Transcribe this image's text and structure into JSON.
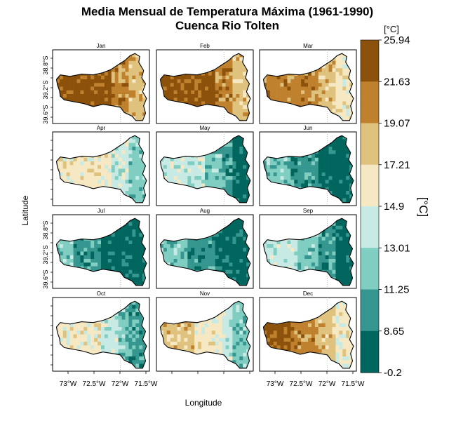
{
  "figure": {
    "title_line1": "Media Mensual de Temperatura Máxima (1961-1990)",
    "title_line2": "Cuenca Rio Tolten",
    "xlabel": "Longitude",
    "ylabel": "Latitude",
    "colorbar_unit_top": "[°C]",
    "colorbar_unit_side": "[°C]"
  },
  "chart_data": {
    "type": "heatmap",
    "title": "Media Mensual de Temperatura Máxima (1961-1990)",
    "subtitle": "Cuenca Rio Tolten",
    "xlabel": "Longitude",
    "ylabel": "Latitude",
    "layout": "small multiples, 4 rows x 3 columns",
    "panels": [
      "Jan",
      "Feb",
      "Mar",
      "Apr",
      "May",
      "Jun",
      "Jul",
      "Aug",
      "Sep",
      "Oct",
      "Nov",
      "Dec"
    ],
    "x_ticks": [
      "73°W",
      "72.5°W",
      "72°W",
      "71.5°W"
    ],
    "y_ticks": [
      "38.8°S",
      "39.2°S",
      "39.6°S"
    ],
    "colorbar_breaks": [
      25.94,
      21.63,
      19.07,
      17.21,
      14.9,
      13.01,
      11.25,
      8.65,
      -0.2
    ],
    "colorbar_labels": [
      "25.94",
      "21.63",
      "19.07",
      "17.21",
      "14.9",
      "13.01",
      "11.25",
      "8.65",
      "-0.2"
    ],
    "colorbar_colors_top_to_bottom": [
      "#8C510A",
      "#BF812D",
      "#DFC27D",
      "#F6E8C3",
      "#C7EAE5",
      "#80CDC1",
      "#35978F",
      "#01665E"
    ],
    "approx_west_east_class_index": {
      "Jan": [
        0,
        0,
        0,
        0,
        0,
        0,
        1,
        1,
        2,
        2
      ],
      "Feb": [
        0,
        0,
        0,
        0,
        0,
        0,
        1,
        1,
        2,
        2
      ],
      "Mar": [
        1,
        1,
        1,
        1,
        1,
        1,
        2,
        2,
        3,
        3
      ],
      "Apr": [
        3,
        3,
        3,
        3,
        3,
        3,
        4,
        4,
        5,
        5
      ],
      "May": [
        4,
        4,
        4,
        4,
        4,
        5,
        5,
        6,
        7,
        7
      ],
      "Jun": [
        5,
        5,
        5,
        6,
        6,
        6,
        7,
        7,
        7,
        7
      ],
      "Jul": [
        5,
        5,
        6,
        6,
        6,
        7,
        7,
        7,
        7,
        7
      ],
      "Aug": [
        5,
        5,
        5,
        6,
        6,
        6,
        7,
        7,
        7,
        7
      ],
      "Sep": [
        4,
        4,
        4,
        4,
        5,
        5,
        6,
        6,
        7,
        7
      ],
      "Oct": [
        3,
        3,
        3,
        3,
        3,
        4,
        4,
        5,
        6,
        6
      ],
      "Nov": [
        2,
        2,
        2,
        2,
        3,
        3,
        3,
        4,
        5,
        5
      ],
      "Dec": [
        0,
        0,
        0,
        1,
        1,
        1,
        2,
        2,
        3,
        3
      ]
    }
  }
}
